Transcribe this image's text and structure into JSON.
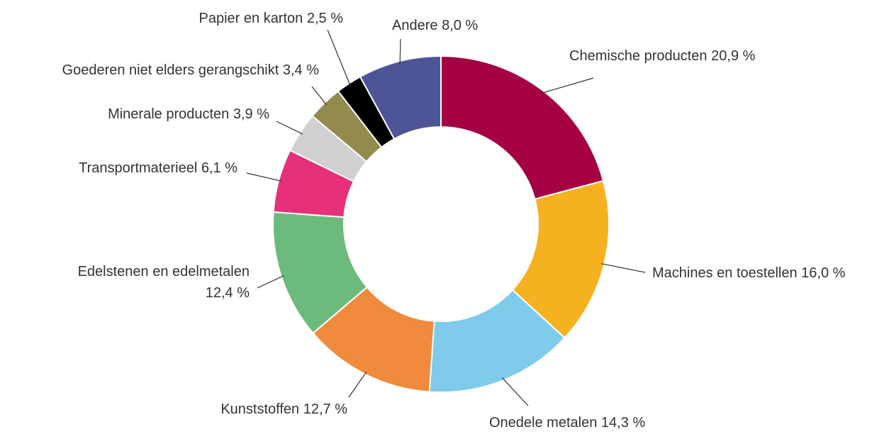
{
  "chart_data": {
    "type": "donut",
    "categories": [
      "Chemische producten",
      "Machines en toestellen",
      "Onedele metalen",
      "Kunststoffen",
      "Edelstenen en edelmetalen",
      "Transportmaterieel",
      "Minerale producten",
      "Goederen niet elders gerangschikt",
      "Papier en karton",
      "Andere"
    ],
    "values": [
      20.9,
      16.0,
      14.3,
      12.7,
      12.4,
      6.1,
      3.9,
      3.4,
      2.5,
      8.0
    ],
    "value_labels": [
      "20,9 %",
      "16,0 %",
      "14,3 %",
      "12,7 %",
      "12,4 %",
      "6,1 %",
      "3,9 %",
      "3,4 %",
      "2,5 %",
      "8,0 %"
    ],
    "colors": [
      "#a50044",
      "#f5b120",
      "#7ecbec",
      "#f08a3c",
      "#6dba7d",
      "#e6307a",
      "#d0d0d0",
      "#938a4e",
      "#000000",
      "#4d5597"
    ]
  }
}
